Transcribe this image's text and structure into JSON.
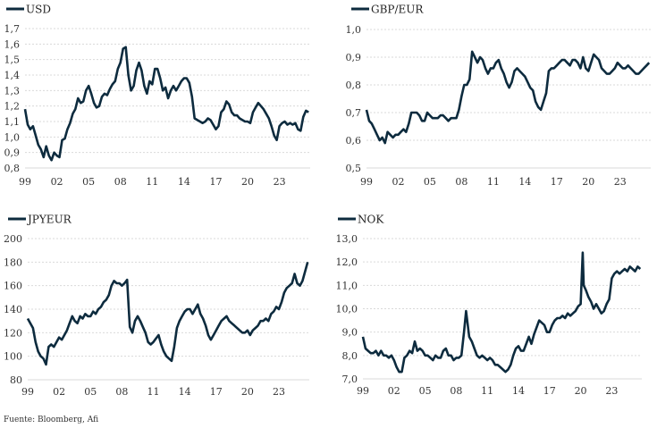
{
  "source_note": "Fuente: Bloomberg, Afi",
  "line_color": "#0d2b3e",
  "chart_data": [
    {
      "type": "line",
      "title": "",
      "legend": [
        "USD"
      ],
      "legend_position": "top-left",
      "xlabel": "",
      "ylabel": "",
      "x_ticks": [
        "99",
        "02",
        "05",
        "08",
        "11",
        "14",
        "17",
        "20",
        "23"
      ],
      "x_range": [
        1999,
        2025.9
      ],
      "y_ticks": [
        "0,8",
        "0,9",
        "1,0",
        "1,1",
        "1,2",
        "1,3",
        "1,4",
        "1,5",
        "1,6",
        "1,7"
      ],
      "ylim": [
        0.8,
        1.7
      ],
      "grid": true,
      "series": [
        {
          "name": "USD",
          "x": [
            1999.0,
            1999.25,
            1999.5,
            1999.75,
            2000.0,
            2000.25,
            2000.5,
            2000.75,
            2001.0,
            2001.25,
            2001.5,
            2001.75,
            2002.0,
            2002.25,
            2002.5,
            2002.75,
            2003.0,
            2003.25,
            2003.5,
            2003.75,
            2004.0,
            2004.25,
            2004.5,
            2004.75,
            2005.0,
            2005.25,
            2005.5,
            2005.75,
            2006.0,
            2006.25,
            2006.5,
            2006.75,
            2007.0,
            2007.25,
            2007.5,
            2007.75,
            2008.0,
            2008.25,
            2008.5,
            2008.75,
            2009.0,
            2009.25,
            2009.5,
            2009.75,
            2010.0,
            2010.25,
            2010.5,
            2010.75,
            2011.0,
            2011.25,
            2011.5,
            2011.75,
            2012.0,
            2012.25,
            2012.5,
            2012.75,
            2013.0,
            2013.25,
            2013.5,
            2013.75,
            2014.0,
            2014.25,
            2014.5,
            2014.75,
            2015.0,
            2015.25,
            2015.5,
            2015.75,
            2016.0,
            2016.25,
            2016.5,
            2016.75,
            2017.0,
            2017.25,
            2017.5,
            2017.75,
            2018.0,
            2018.25,
            2018.5,
            2018.75,
            2019.0,
            2019.25,
            2019.5,
            2019.75,
            2020.0,
            2020.25,
            2020.5,
            2020.75,
            2021.0,
            2021.25,
            2021.5,
            2021.75,
            2022.0,
            2022.25,
            2022.5,
            2022.75,
            2023.0,
            2023.25,
            2023.5,
            2023.75,
            2024.0,
            2024.25,
            2024.5,
            2024.75,
            2025.0,
            2025.25,
            2025.5,
            2025.75
          ],
          "values": [
            1.18,
            1.08,
            1.05,
            1.07,
            1.01,
            0.95,
            0.92,
            0.87,
            0.94,
            0.88,
            0.85,
            0.9,
            0.88,
            0.87,
            0.98,
            0.99,
            1.05,
            1.09,
            1.15,
            1.18,
            1.25,
            1.22,
            1.23,
            1.3,
            1.33,
            1.28,
            1.22,
            1.19,
            1.2,
            1.26,
            1.28,
            1.27,
            1.31,
            1.34,
            1.36,
            1.44,
            1.48,
            1.57,
            1.58,
            1.4,
            1.3,
            1.33,
            1.43,
            1.48,
            1.43,
            1.33,
            1.28,
            1.36,
            1.34,
            1.44,
            1.44,
            1.38,
            1.3,
            1.32,
            1.25,
            1.3,
            1.33,
            1.3,
            1.33,
            1.36,
            1.38,
            1.38,
            1.35,
            1.26,
            1.12,
            1.11,
            1.1,
            1.09,
            1.1,
            1.12,
            1.11,
            1.08,
            1.05,
            1.07,
            1.16,
            1.18,
            1.23,
            1.21,
            1.16,
            1.14,
            1.14,
            1.12,
            1.11,
            1.1,
            1.1,
            1.09,
            1.16,
            1.19,
            1.22,
            1.2,
            1.18,
            1.15,
            1.12,
            1.07,
            1.01,
            0.98,
            1.07,
            1.09,
            1.1,
            1.08,
            1.09,
            1.08,
            1.09,
            1.05,
            1.04,
            1.13,
            1.17,
            1.16
          ]
        }
      ]
    },
    {
      "type": "line",
      "title": "",
      "legend": [
        "GBP/EUR"
      ],
      "legend_position": "top-left",
      "xlabel": "",
      "ylabel": "",
      "x_ticks": [
        "99",
        "02",
        "05",
        "08",
        "11",
        "14",
        "17",
        "20",
        "23"
      ],
      "x_range": [
        1999,
        2025.9
      ],
      "y_ticks": [
        "0,5",
        "0,6",
        "0,7",
        "0,8",
        "0,9",
        "1,0"
      ],
      "ylim": [
        0.5,
        1.0
      ],
      "grid": true,
      "series": [
        {
          "name": "GBP/EUR",
          "x": [
            1999.0,
            1999.25,
            1999.5,
            1999.75,
            2000.0,
            2000.25,
            2000.5,
            2000.75,
            2001.0,
            2001.25,
            2001.5,
            2001.75,
            2002.0,
            2002.25,
            2002.5,
            2002.75,
            2003.0,
            2003.25,
            2003.5,
            2003.75,
            2004.0,
            2004.25,
            2004.5,
            2004.75,
            2005.0,
            2005.25,
            2005.5,
            2005.75,
            2006.0,
            2006.25,
            2006.5,
            2006.75,
            2007.0,
            2007.25,
            2007.5,
            2007.75,
            2008.0,
            2008.25,
            2008.5,
            2008.75,
            2009.0,
            2009.25,
            2009.5,
            2009.75,
            2010.0,
            2010.25,
            2010.5,
            2010.75,
            2011.0,
            2011.25,
            2011.5,
            2011.75,
            2012.0,
            2012.25,
            2012.5,
            2012.75,
            2013.0,
            2013.25,
            2013.5,
            2013.75,
            2014.0,
            2014.25,
            2014.5,
            2014.75,
            2015.0,
            2015.25,
            2015.5,
            2015.75,
            2016.0,
            2016.25,
            2016.5,
            2016.75,
            2017.0,
            2017.25,
            2017.5,
            2017.75,
            2018.0,
            2018.25,
            2018.5,
            2018.75,
            2019.0,
            2019.25,
            2019.5,
            2019.75,
            2020.0,
            2020.25,
            2020.5,
            2020.75,
            2021.0,
            2021.25,
            2021.5,
            2021.75,
            2022.0,
            2022.25,
            2022.5,
            2022.75,
            2023.0,
            2023.25,
            2023.5,
            2023.75,
            2024.0,
            2024.25,
            2024.5,
            2024.75,
            2025.0,
            2025.25,
            2025.5,
            2025.75
          ],
          "values": [
            0.71,
            0.67,
            0.66,
            0.64,
            0.62,
            0.6,
            0.61,
            0.59,
            0.63,
            0.62,
            0.61,
            0.62,
            0.62,
            0.63,
            0.64,
            0.63,
            0.66,
            0.7,
            0.7,
            0.7,
            0.69,
            0.67,
            0.67,
            0.7,
            0.69,
            0.68,
            0.68,
            0.68,
            0.69,
            0.69,
            0.68,
            0.67,
            0.68,
            0.68,
            0.68,
            0.71,
            0.76,
            0.8,
            0.8,
            0.82,
            0.92,
            0.9,
            0.88,
            0.9,
            0.89,
            0.86,
            0.84,
            0.86,
            0.86,
            0.88,
            0.89,
            0.86,
            0.84,
            0.81,
            0.79,
            0.81,
            0.85,
            0.86,
            0.85,
            0.84,
            0.83,
            0.81,
            0.79,
            0.78,
            0.74,
            0.72,
            0.71,
            0.74,
            0.77,
            0.85,
            0.86,
            0.86,
            0.87,
            0.88,
            0.89,
            0.89,
            0.88,
            0.87,
            0.89,
            0.89,
            0.88,
            0.86,
            0.9,
            0.86,
            0.85,
            0.88,
            0.91,
            0.9,
            0.89,
            0.86,
            0.85,
            0.84,
            0.84,
            0.85,
            0.86,
            0.88,
            0.87,
            0.86,
            0.86,
            0.87,
            0.86,
            0.85,
            0.84,
            0.84,
            0.85,
            0.86,
            0.87,
            0.88
          ]
        }
      ]
    },
    {
      "type": "line",
      "title": "",
      "legend": [
        "JPYEUR"
      ],
      "legend_position": "top-left",
      "xlabel": "",
      "ylabel": "",
      "x_ticks": [
        "99",
        "02",
        "05",
        "08",
        "11",
        "14",
        "17",
        "20",
        "23"
      ],
      "x_range": [
        1999,
        2025.9
      ],
      "y_ticks": [
        "80",
        "100",
        "120",
        "140",
        "160",
        "180",
        "200"
      ],
      "ylim": [
        80,
        200
      ],
      "grid": true,
      "series": [
        {
          "name": "JPYEUR",
          "x": [
            1999.0,
            1999.25,
            1999.5,
            1999.75,
            2000.0,
            2000.25,
            2000.5,
            2000.75,
            2001.0,
            2001.25,
            2001.5,
            2001.75,
            2002.0,
            2002.25,
            2002.5,
            2002.75,
            2003.0,
            2003.25,
            2003.5,
            2003.75,
            2004.0,
            2004.25,
            2004.5,
            2004.75,
            2005.0,
            2005.25,
            2005.5,
            2005.75,
            2006.0,
            2006.25,
            2006.5,
            2006.75,
            2007.0,
            2007.25,
            2007.5,
            2007.75,
            2008.0,
            2008.25,
            2008.5,
            2008.75,
            2009.0,
            2009.25,
            2009.5,
            2009.75,
            2010.0,
            2010.25,
            2010.5,
            2010.75,
            2011.0,
            2011.25,
            2011.5,
            2011.75,
            2012.0,
            2012.25,
            2012.5,
            2012.75,
            2013.0,
            2013.25,
            2013.5,
            2013.75,
            2014.0,
            2014.25,
            2014.5,
            2014.75,
            2015.0,
            2015.25,
            2015.5,
            2015.75,
            2016.0,
            2016.25,
            2016.5,
            2016.75,
            2017.0,
            2017.25,
            2017.5,
            2017.75,
            2018.0,
            2018.25,
            2018.5,
            2018.75,
            2019.0,
            2019.25,
            2019.5,
            2019.75,
            2020.0,
            2020.25,
            2020.5,
            2020.75,
            2021.0,
            2021.25,
            2021.5,
            2021.75,
            2022.0,
            2022.25,
            2022.5,
            2022.75,
            2023.0,
            2023.25,
            2023.5,
            2023.75,
            2024.0,
            2024.25,
            2024.5,
            2024.75,
            2025.0,
            2025.25,
            2025.5,
            2025.75
          ],
          "values": [
            132,
            128,
            124,
            112,
            104,
            100,
            98,
            93,
            108,
            110,
            108,
            112,
            116,
            114,
            118,
            122,
            128,
            134,
            130,
            128,
            134,
            132,
            136,
            134,
            134,
            138,
            136,
            140,
            142,
            146,
            148,
            152,
            160,
            164,
            162,
            162,
            160,
            162,
            165,
            125,
            120,
            130,
            134,
            130,
            125,
            120,
            112,
            110,
            112,
            115,
            118,
            110,
            104,
            100,
            98,
            96,
            108,
            124,
            130,
            134,
            138,
            140,
            140,
            136,
            140,
            144,
            136,
            132,
            126,
            118,
            114,
            118,
            122,
            126,
            130,
            132,
            134,
            130,
            128,
            126,
            124,
            122,
            120,
            120,
            122,
            118,
            122,
            124,
            126,
            130,
            130,
            132,
            130,
            136,
            138,
            142,
            140,
            146,
            154,
            158,
            160,
            162,
            170,
            162,
            160,
            164,
            172,
            180
          ]
        }
      ]
    },
    {
      "type": "line",
      "title": "",
      "legend": [
        "NOK"
      ],
      "legend_position": "top-left",
      "xlabel": "",
      "ylabel": "",
      "x_ticks": [
        "99",
        "02",
        "05",
        "08",
        "11",
        "14",
        "17",
        "20",
        "23"
      ],
      "x_range": [
        1999,
        2025.9
      ],
      "y_ticks": [
        "7,0",
        "8,0",
        "9,0",
        "10,0",
        "11,0",
        "12,0",
        "13,0"
      ],
      "ylim": [
        7.0,
        13.0
      ],
      "grid": true,
      "series": [
        {
          "name": "NOK",
          "x": [
            1999.0,
            1999.25,
            1999.5,
            1999.75,
            2000.0,
            2000.25,
            2000.5,
            2000.75,
            2001.0,
            2001.25,
            2001.5,
            2001.75,
            2002.0,
            2002.25,
            2002.5,
            2002.75,
            2003.0,
            2003.25,
            2003.5,
            2003.75,
            2004.0,
            2004.25,
            2004.5,
            2004.75,
            2005.0,
            2005.25,
            2005.5,
            2005.75,
            2006.0,
            2006.25,
            2006.5,
            2006.75,
            2007.0,
            2007.25,
            2007.5,
            2007.75,
            2008.0,
            2008.25,
            2008.5,
            2008.75,
            2008.95,
            2009.25,
            2009.5,
            2009.75,
            2010.0,
            2010.25,
            2010.5,
            2010.75,
            2011.0,
            2011.25,
            2011.5,
            2011.75,
            2012.0,
            2012.25,
            2012.5,
            2012.75,
            2013.0,
            2013.25,
            2013.5,
            2013.75,
            2014.0,
            2014.25,
            2014.5,
            2014.75,
            2015.0,
            2015.25,
            2015.5,
            2015.75,
            2016.0,
            2016.25,
            2016.5,
            2016.75,
            2017.0,
            2017.25,
            2017.5,
            2017.75,
            2018.0,
            2018.25,
            2018.5,
            2018.75,
            2019.0,
            2019.25,
            2019.5,
            2019.75,
            2020.0,
            2020.2,
            2020.3,
            2020.5,
            2020.75,
            2021.0,
            2021.25,
            2021.5,
            2021.75,
            2022.0,
            2022.25,
            2022.5,
            2022.75,
            2023.0,
            2023.25,
            2023.5,
            2023.75,
            2024.0,
            2024.25,
            2024.5,
            2024.75,
            2025.0,
            2025.25,
            2025.5,
            2025.75
          ],
          "values": [
            8.8,
            8.3,
            8.2,
            8.1,
            8.1,
            8.2,
            8.0,
            8.2,
            8.0,
            8.0,
            7.9,
            8.0,
            7.8,
            7.5,
            7.3,
            7.3,
            7.9,
            8.0,
            8.2,
            8.1,
            8.6,
            8.2,
            8.3,
            8.2,
            8.0,
            8.0,
            7.9,
            7.8,
            8.0,
            7.9,
            7.9,
            8.2,
            8.3,
            8.0,
            8.0,
            7.8,
            7.9,
            7.9,
            8.0,
            9.0,
            9.9,
            8.8,
            8.6,
            8.3,
            8.0,
            7.9,
            8.0,
            7.9,
            7.8,
            7.9,
            7.8,
            7.6,
            7.6,
            7.5,
            7.4,
            7.3,
            7.4,
            7.6,
            8.0,
            8.3,
            8.4,
            8.2,
            8.2,
            8.5,
            8.8,
            8.5,
            8.9,
            9.2,
            9.5,
            9.4,
            9.3,
            9.0,
            9.0,
            9.3,
            9.5,
            9.6,
            9.6,
            9.7,
            9.6,
            9.8,
            9.7,
            9.8,
            9.9,
            10.1,
            10.2,
            12.4,
            11.0,
            10.8,
            10.5,
            10.3,
            10.0,
            10.2,
            10.0,
            9.8,
            9.9,
            10.2,
            10.4,
            11.3,
            11.5,
            11.6,
            11.5,
            11.6,
            11.7,
            11.6,
            11.8,
            11.7,
            11.6,
            11.8,
            11.7
          ]
        }
      ]
    }
  ]
}
